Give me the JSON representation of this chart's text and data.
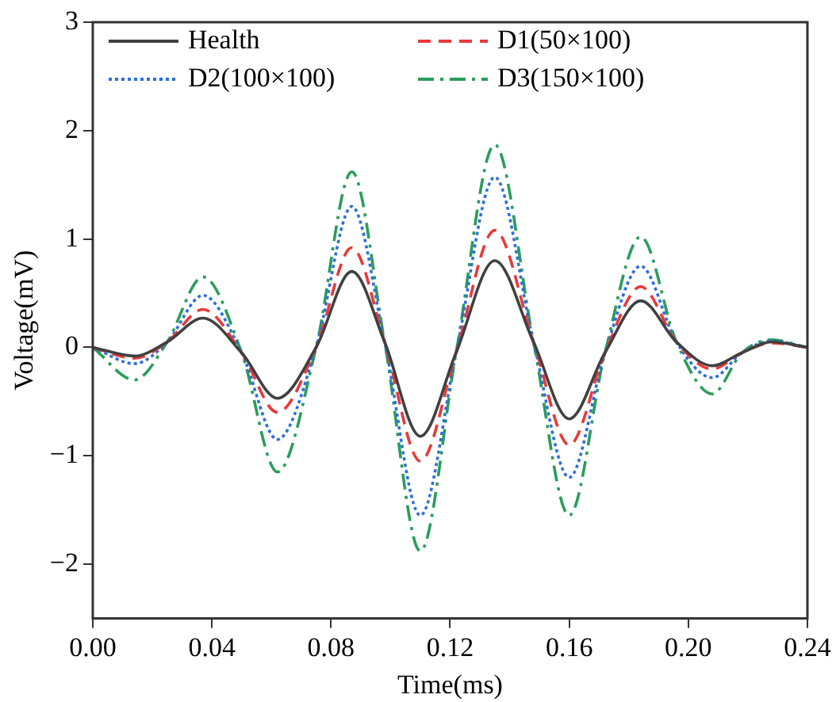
{
  "chart_data": {
    "type": "line",
    "xlabel": "Time(ms)",
    "ylabel": "Voltage(mV)",
    "x": [
      0,
      0.014,
      0.025,
      0.037,
      0.05,
      0.062,
      0.075,
      0.087,
      0.098,
      0.11,
      0.122,
      0.135,
      0.148,
      0.16,
      0.172,
      0.184,
      0.196,
      0.208,
      0.218,
      0.228,
      0.24
    ],
    "series": [
      {
        "name": "Health",
        "color": "#404040",
        "line_style": "solid",
        "values": [
          0,
          -0.08,
          0.05,
          0.27,
          -0.05,
          -0.47,
          0,
          0.7,
          0.05,
          -0.82,
          -0.05,
          0.8,
          0.05,
          -0.66,
          -0.05,
          0.43,
          0.05,
          -0.17,
          -0.05,
          0.05,
          0
        ]
      },
      {
        "name": "D1(50×100)",
        "color": "#e8393a",
        "line_style": "dashed",
        "values": [
          0,
          -0.1,
          0.05,
          0.35,
          -0.05,
          -0.6,
          0,
          0.92,
          0.05,
          -1.05,
          -0.05,
          1.08,
          0.05,
          -0.9,
          -0.05,
          0.56,
          0.05,
          -0.2,
          -0.05,
          0.04,
          0
        ]
      },
      {
        "name": "D2(100×100)",
        "color": "#2e6fd8",
        "line_style": "dotted",
        "values": [
          0,
          -0.15,
          0.05,
          0.48,
          -0.05,
          -0.85,
          0,
          1.3,
          0.05,
          -1.55,
          -0.05,
          1.57,
          0.05,
          -1.2,
          -0.05,
          0.75,
          0.05,
          -0.28,
          -0.05,
          0.06,
          0
        ]
      },
      {
        "name": "D3(150×100)",
        "color": "#2a9d5a",
        "line_style": "dashdot",
        "values": [
          0,
          -0.3,
          0.05,
          0.65,
          -0.05,
          -1.15,
          0,
          1.62,
          0.05,
          -1.88,
          -0.05,
          1.87,
          0.05,
          -1.55,
          -0.05,
          1.02,
          0.05,
          -0.43,
          -0.05,
          0.07,
          0
        ]
      }
    ],
    "xlim": [
      0,
      0.24
    ],
    "xticks": [
      {
        "value": 0,
        "label": "0.00"
      },
      {
        "value": 0.04,
        "label": "0.04"
      },
      {
        "value": 0.08,
        "label": "0.08"
      },
      {
        "value": 0.12,
        "label": "0.12"
      },
      {
        "value": 0.16,
        "label": "0.16"
      },
      {
        "value": 0.2,
        "label": "0.20"
      },
      {
        "value": 0.24,
        "label": "0.24"
      }
    ],
    "ylim": [
      -2.5,
      3
    ],
    "yticks": [
      {
        "value": -2,
        "label": "−2"
      },
      {
        "value": -1,
        "label": "−1"
      },
      0,
      1,
      2,
      3
    ],
    "grid": false,
    "legend": "top",
    "marker": "none"
  }
}
